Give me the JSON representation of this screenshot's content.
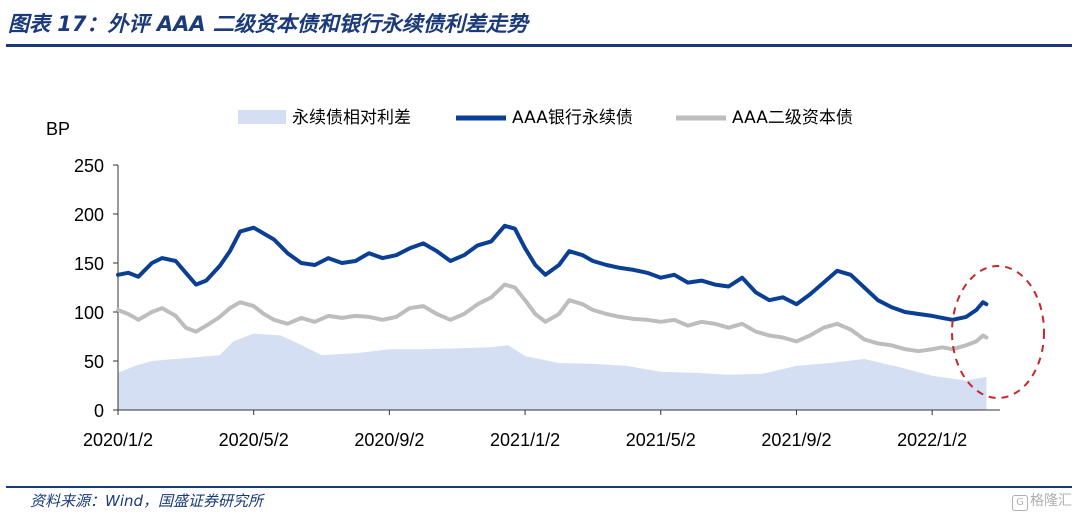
{
  "header": {
    "title": "图表 17：外评 AAA 二级资本债和银行永续债利差走势"
  },
  "footer": {
    "source": "资料来源：Wind，国盛证券研究所",
    "watermark": "格隆汇",
    "watermark_icon": "G"
  },
  "chart_data": {
    "type": "line",
    "ylabel": "BP",
    "ylim": [
      0,
      250
    ],
    "yticks": [
      0,
      50,
      100,
      150,
      200,
      250
    ],
    "xlim": [
      0,
      26
    ],
    "x_tick_labels": [
      "2020/1/2",
      "2020/5/2",
      "2020/9/2",
      "2021/1/2",
      "2021/5/2",
      "2021/9/2",
      "2022/1/2"
    ],
    "x_tick_positions": [
      0,
      4,
      8,
      12,
      16,
      20,
      24
    ],
    "series": [
      {
        "name": "永续债相对利差",
        "kind": "area",
        "color": "#d4dff4",
        "x": [
          0,
          0.5,
          1,
          2,
          3,
          3.4,
          4,
          4.8,
          5.3,
          6,
          7,
          8,
          9,
          10,
          11,
          11.5,
          12,
          13,
          14,
          15,
          16,
          17,
          18,
          19,
          20,
          21,
          22,
          23,
          24,
          25,
          25.6
        ],
        "values": [
          38,
          45,
          50,
          53,
          56,
          70,
          78,
          76,
          68,
          56,
          58,
          62,
          62,
          63,
          64,
          66,
          55,
          48,
          47,
          45,
          39,
          38,
          36,
          37,
          45,
          48,
          52,
          44,
          35,
          30,
          34
        ]
      },
      {
        "name": "AAA银行永续债",
        "kind": "line",
        "color": "#0b3f93",
        "x": [
          0,
          0.3,
          0.6,
          1,
          1.3,
          1.7,
          2,
          2.3,
          2.6,
          3,
          3.3,
          3.6,
          4,
          4.3,
          4.6,
          5,
          5.4,
          5.8,
          6.2,
          6.6,
          7,
          7.4,
          7.8,
          8.2,
          8.6,
          9,
          9.4,
          9.8,
          10.2,
          10.6,
          11,
          11.4,
          11.7,
          12,
          12.3,
          12.6,
          13,
          13.3,
          13.7,
          14,
          14.4,
          14.8,
          15.2,
          15.6,
          16,
          16.4,
          16.8,
          17.2,
          17.6,
          18,
          18.4,
          18.8,
          19.2,
          19.6,
          20,
          20.4,
          20.8,
          21.2,
          21.6,
          22,
          22.4,
          22.8,
          23.2,
          23.6,
          24,
          24.3,
          24.6,
          25,
          25.3,
          25.5,
          25.6
        ],
        "values": [
          138,
          140,
          136,
          150,
          155,
          152,
          140,
          128,
          132,
          147,
          162,
          182,
          186,
          180,
          174,
          160,
          150,
          148,
          155,
          150,
          152,
          160,
          155,
          158,
          165,
          170,
          162,
          152,
          158,
          168,
          172,
          188,
          185,
          165,
          148,
          138,
          148,
          162,
          158,
          152,
          148,
          145,
          143,
          140,
          135,
          138,
          130,
          132,
          128,
          126,
          135,
          120,
          112,
          115,
          108,
          118,
          130,
          142,
          138,
          125,
          112,
          105,
          100,
          98,
          96,
          94,
          92,
          95,
          102,
          110,
          108
        ]
      },
      {
        "name": "AAA二级资本债",
        "kind": "line",
        "color": "#bdbdbd",
        "x": [
          0,
          0.3,
          0.6,
          1,
          1.3,
          1.7,
          2,
          2.3,
          2.6,
          3,
          3.3,
          3.6,
          4,
          4.3,
          4.6,
          5,
          5.4,
          5.8,
          6.2,
          6.6,
          7,
          7.4,
          7.8,
          8.2,
          8.6,
          9,
          9.4,
          9.8,
          10.2,
          10.6,
          11,
          11.4,
          11.7,
          12,
          12.3,
          12.6,
          13,
          13.3,
          13.7,
          14,
          14.4,
          14.8,
          15.2,
          15.6,
          16,
          16.4,
          16.8,
          17.2,
          17.6,
          18,
          18.4,
          18.8,
          19.2,
          19.6,
          20,
          20.4,
          20.8,
          21.2,
          21.6,
          22,
          22.4,
          22.8,
          23.2,
          23.6,
          24,
          24.3,
          24.6,
          25,
          25.3,
          25.5,
          25.6
        ],
        "values": [
          102,
          98,
          92,
          100,
          104,
          96,
          84,
          80,
          86,
          95,
          104,
          110,
          106,
          98,
          92,
          88,
          94,
          90,
          96,
          94,
          96,
          95,
          92,
          95,
          104,
          106,
          98,
          92,
          98,
          108,
          115,
          128,
          125,
          112,
          98,
          90,
          98,
          112,
          108,
          102,
          98,
          95,
          93,
          92,
          90,
          92,
          86,
          90,
          88,
          84,
          88,
          80,
          76,
          74,
          70,
          76,
          84,
          88,
          82,
          72,
          68,
          66,
          62,
          60,
          62,
          64,
          62,
          66,
          70,
          76,
          74
        ]
      }
    ]
  }
}
